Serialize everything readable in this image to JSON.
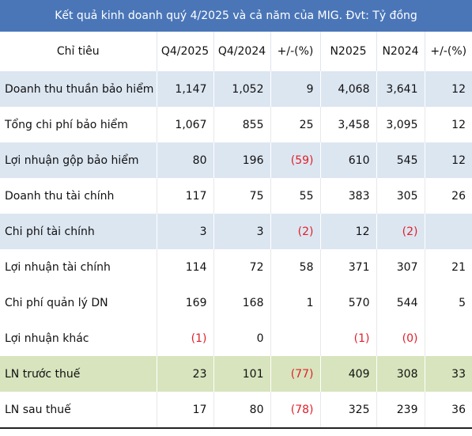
{
  "header": {
    "title": "Kết quả kinh doanh quý 4/2025 và cả năm của MIG. Đvt: Tỷ đồng"
  },
  "table": {
    "columns": [
      "Chỉ tiêu",
      "Q4/2025",
      "Q4/2024",
      "+/-(%)",
      "N2025",
      "N2024",
      "+/-(%)"
    ],
    "rows": [
      [
        "Doanh thu thuần bảo hiểm",
        "1,147",
        "1,052",
        "9",
        "4,068",
        "3,641",
        "12"
      ],
      [
        "Tổng chi phí bảo hiểm",
        "1,067",
        "855",
        "25",
        "3,458",
        "3,095",
        "12"
      ],
      [
        "Lợi nhuận gộp  bảo hiểm",
        "80",
        "196",
        "(59)",
        "610",
        "545",
        "12"
      ],
      [
        "Doanh thu tài chính",
        "117",
        "75",
        "55",
        "383",
        "305",
        "26"
      ],
      [
        "Chi phí tài chính",
        "3",
        "3",
        "(2)",
        "12",
        "(2)",
        null
      ],
      [
        "Lợi nhuận tài chính",
        "114",
        "72",
        "58",
        "371",
        "307",
        "21"
      ],
      [
        "Chi phí quản lý DN",
        "169",
        "168",
        "1",
        "570",
        "544",
        "5"
      ],
      [
        "Lợi nhuận khác",
        "(1)",
        "0",
        null,
        "(1)",
        "(0)",
        null
      ],
      [
        "LN trước thuế",
        "23",
        "101",
        "(77)",
        "409",
        "308",
        "33"
      ],
      [
        "LN sau thuế",
        "17",
        "80",
        "(78)",
        "325",
        "239",
        "36"
      ]
    ]
  }
}
